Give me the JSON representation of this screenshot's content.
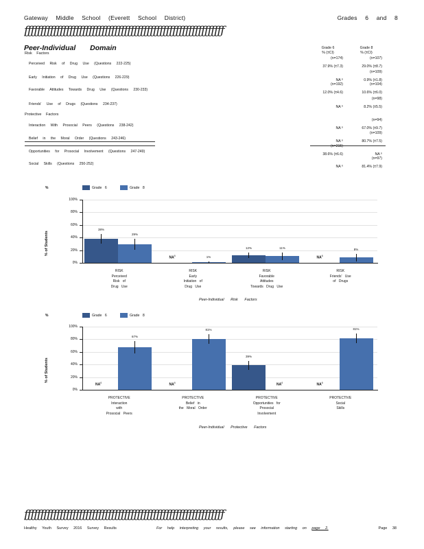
{
  "header": {
    "school": "Gateway Middle School (Everett School District)",
    "grades": "Grades 6 and 8"
  },
  "rule_text": "ƒƒƒƒƒƒƒƒƒƒƒƒƒƒƒƒƒƒƒƒƒƒƒƒƒƒƒƒƒƒƒƒƒƒƒƒƒƒƒƒƒƒƒƒƒƒƒƒƒƒƒƒƒƒƒƒƒƒƒƒƒƒ",
  "domain_title": "Peer-Individual Domain",
  "columns": {
    "g6": {
      "title": "Grade 6",
      "sub": "% (±CI)"
    },
    "g8": {
      "title": "Grade 8",
      "sub": "% (±CI)"
    }
  },
  "risk_heading": "Risk Factors",
  "protective_heading": "Protective Factors",
  "risk_items": [
    {
      "label": "Perceived Risk of Drug Use (Questions 222-225)",
      "g6_n": "(n=174)",
      "g6": "37.9% (±7.3)",
      "g8_n": "(n=107)",
      "g8": "29.0% (±8.7)"
    },
    {
      "label": "Early Initiation of Drug Use (Questions 226-229)",
      "g6_n": "",
      "g6": "NA ⁶",
      "g8_n": "(n=109)",
      "g8": "0.9% (±1.8)"
    },
    {
      "label": "Favorable Attitudes Towards Drug Use (Questions 230-233)",
      "g6_n": "(n=192)",
      "g6": "12.0% (±4.6)",
      "g8_n": "(n=104)",
      "g8": "10.6% (±6.0)"
    },
    {
      "label": "Friends' Use of Drugs (Questions 234-237)",
      "g6_n": "",
      "g6": "NA ⁶",
      "g8_n": "(n=98)",
      "g8": "8.2% (±5.5)"
    }
  ],
  "protective_items": [
    {
      "label": "Interaction With Prosocial Peers (Questions 238-242)",
      "g6_n": "",
      "g6": "NA ⁶",
      "g8_n": "(n=94)",
      "g8": "67.0% (±9.7)"
    },
    {
      "label": "Belief in the Moral Order (Questions 243-246)",
      "g6_n": "",
      "g6": "NA ⁶",
      "g8_n": "(n=109)",
      "g8": "80.7% (±7.5)"
    },
    {
      "label": "Opportunities for Prosocial Involvement (Questions 247-249)",
      "g6_n": "(n=215)",
      "g6": "38.6% (±6.6)",
      "g8_n": "",
      "g8": "NA ⁶"
    },
    {
      "label": "Social Skills (Questions 250-252)",
      "g6_n": "",
      "g6": "NA ⁶",
      "g8_n": "(n=97)",
      "g8": "81.4% (±7.9)"
    }
  ],
  "colors": {
    "grade6": "#36578a",
    "grade8": "#4670ad"
  },
  "chart_data": [
    {
      "type": "bar",
      "title": "",
      "xlabel": "Peer-Individual Risk Factors",
      "ylabel": "% of Students",
      "ylim": [
        0,
        100
      ],
      "yticks": [
        "100%",
        "80%",
        "60%",
        "40%",
        "20%",
        "0%"
      ],
      "legend": [
        "Grade 6",
        "Grade 8"
      ],
      "legend_position": "top-left",
      "categories": [
        [
          "RISK",
          "Perceived",
          "Risk of",
          "Drug Use"
        ],
        [
          "RISK",
          "Early",
          "Initiation of",
          "Drug Use"
        ],
        [
          "RISK",
          "Favorable",
          "Attitudes",
          "Towards Drug Use"
        ],
        [
          "RISK",
          "Friends' Use",
          "of Drugs"
        ]
      ],
      "series": [
        {
          "name": "Grade 6",
          "values": [
            37.9,
            null,
            12.0,
            null
          ],
          "ci": [
            7.3,
            null,
            4.6,
            null
          ],
          "labels": [
            "38%",
            "NA",
            "12%",
            "NA"
          ]
        },
        {
          "name": "Grade 8",
          "values": [
            29.0,
            0.9,
            10.6,
            8.2
          ],
          "ci": [
            8.7,
            1.8,
            6.0,
            5.5
          ],
          "labels": [
            "29%",
            "1%",
            "11%",
            "8%"
          ]
        }
      ]
    },
    {
      "type": "bar",
      "title": "",
      "xlabel": "Peer-Individual Protective Factors",
      "ylabel": "% of Students",
      "ylim": [
        0,
        100
      ],
      "yticks": [
        "100%",
        "80%",
        "60%",
        "40%",
        "20%",
        "0%"
      ],
      "legend": [
        "Grade 6",
        "Grade 8"
      ],
      "legend_position": "top-left",
      "categories": [
        [
          "PROTECTIVE",
          "Interaction",
          "with",
          "Prosocial Peers"
        ],
        [
          "PROTECTIVE",
          "Belief in",
          "the Moral Order"
        ],
        [
          "PROTECTIVE",
          "Opportunities for",
          "Prosocial",
          "Involvement"
        ],
        [
          "PROTECTIVE",
          "Social",
          "Skills"
        ]
      ],
      "series": [
        {
          "name": "Grade 6",
          "values": [
            null,
            null,
            38.6,
            null
          ],
          "ci": [
            null,
            null,
            6.6,
            null
          ],
          "labels": [
            "NA",
            "NA",
            "39%",
            "NA"
          ]
        },
        {
          "name": "Grade 8",
          "values": [
            67.0,
            80.7,
            null,
            81.4
          ],
          "ci": [
            9.7,
            7.5,
            null,
            7.9
          ],
          "labels": [
            "67%",
            "81%",
            "NA",
            "81%"
          ]
        }
      ]
    }
  ],
  "na_sup": "6",
  "footer": {
    "left": "Healthy Youth Survey 2016 Survey Results",
    "middle": "For help interpreting your results, please see information starting on",
    "page_link": "page 2.",
    "right": "Page 38"
  }
}
